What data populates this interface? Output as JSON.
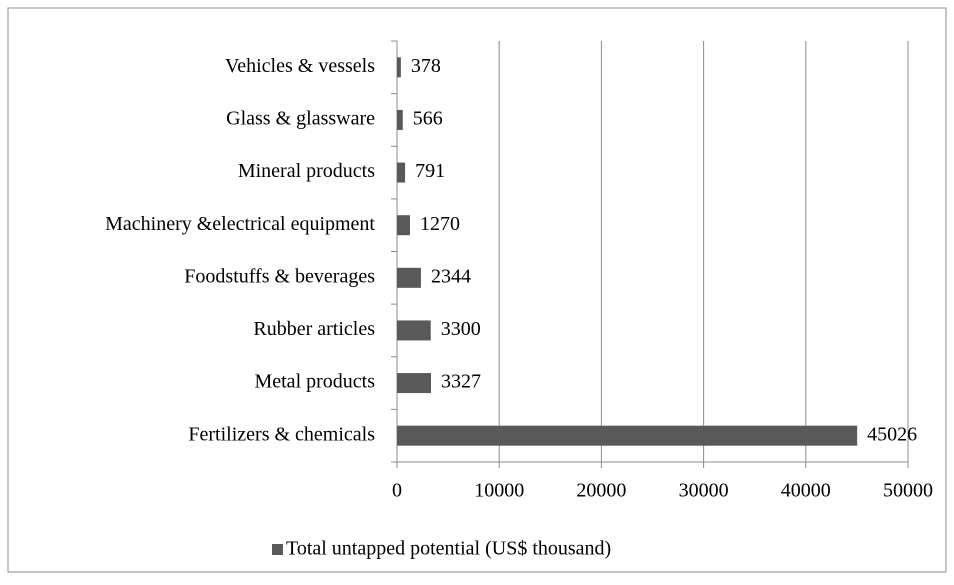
{
  "chart_data": {
    "type": "bar",
    "orientation": "horizontal",
    "categories": [
      "Vehicles & vessels",
      "Glass & glassware",
      "Mineral products",
      "Machinery &electrical equipment",
      "Foodstuffs & beverages",
      "Rubber articles",
      "Metal products",
      "Fertilizers & chemicals"
    ],
    "series": [
      {
        "name": "Total untapped potential (US$ thousand)",
        "color": "#595959",
        "values": [
          378,
          566,
          791,
          1270,
          2344,
          3300,
          3327,
          45026
        ]
      }
    ],
    "xlim": [
      0,
      50000
    ],
    "xticks": [
      0,
      10000,
      20000,
      30000,
      40000,
      50000
    ],
    "grid": true,
    "legend": "bottom"
  }
}
